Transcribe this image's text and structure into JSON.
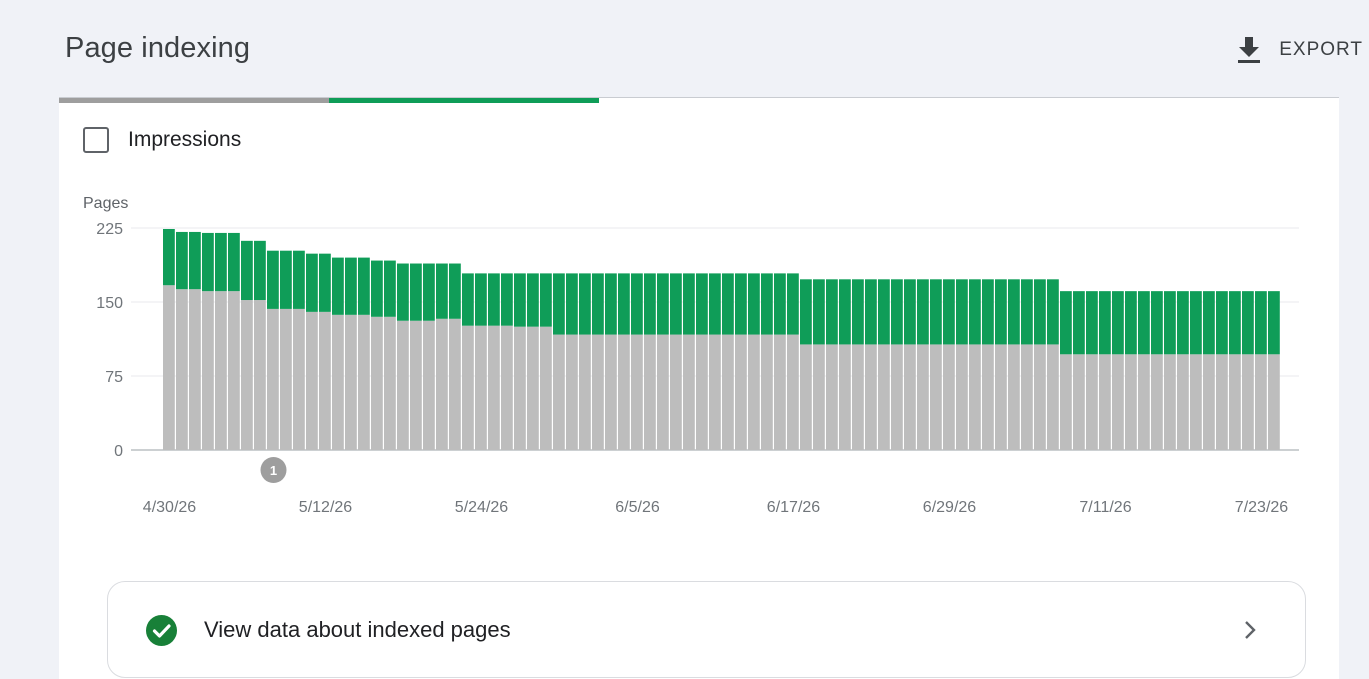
{
  "header": {
    "title": "Page indexing",
    "export_label": "EXPORT",
    "export_icon": "download-icon"
  },
  "tabs": [
    {
      "state": "inactive",
      "color": "#9e9e9e"
    },
    {
      "state": "active",
      "color": "#0f9d58"
    }
  ],
  "toggle": {
    "label": "Impressions",
    "checked": false
  },
  "chart_data": {
    "type": "bar",
    "stacked": true,
    "ylabel": "Pages",
    "ylim": [
      0,
      225
    ],
    "yticks": [
      0,
      75,
      150,
      225
    ],
    "grid": true,
    "xtick_labels": [
      "4/30/26",
      "5/12/26",
      "5/24/26",
      "6/5/26",
      "6/17/26",
      "6/29/26",
      "7/11/26",
      "7/23/26"
    ],
    "xtick_indices": [
      0,
      12,
      24,
      36,
      48,
      60,
      72,
      84
    ],
    "series": [
      {
        "color": "#bdbdbd",
        "values": [
          167,
          163,
          163,
          161,
          161,
          161,
          152,
          152,
          143,
          143,
          143,
          140,
          140,
          137,
          137,
          137,
          135,
          135,
          131,
          131,
          131,
          133,
          133,
          126,
          126,
          126,
          126,
          125,
          125,
          125,
          117,
          117,
          117,
          117,
          117,
          117,
          117,
          117,
          117,
          117,
          117,
          117,
          117,
          117,
          117,
          117,
          117,
          117,
          117,
          107,
          107,
          107,
          107,
          107,
          107,
          107,
          107,
          107,
          107,
          107,
          107,
          107,
          107,
          107,
          107,
          107,
          107,
          107,
          107,
          97,
          97,
          97,
          97,
          97,
          97,
          97,
          97,
          97,
          97,
          97,
          97,
          97,
          97,
          97,
          97,
          97
        ]
      },
      {
        "color": "#0f9d58",
        "values": [
          57,
          58,
          58,
          59,
          59,
          59,
          60,
          60,
          59,
          59,
          59,
          59,
          59,
          58,
          58,
          58,
          57,
          57,
          58,
          58,
          58,
          56,
          56,
          53,
          53,
          53,
          53,
          54,
          54,
          54,
          62,
          62,
          62,
          62,
          62,
          62,
          62,
          62,
          62,
          62,
          62,
          62,
          62,
          62,
          62,
          62,
          62,
          62,
          62,
          66,
          66,
          66,
          66,
          66,
          66,
          66,
          66,
          66,
          66,
          66,
          66,
          66,
          66,
          66,
          66,
          66,
          66,
          66,
          66,
          64,
          64,
          64,
          64,
          64,
          64,
          64,
          64,
          64,
          64,
          64,
          64,
          64,
          64,
          64,
          64,
          64
        ]
      }
    ],
    "annotations": [
      {
        "label": "1",
        "index": 8
      }
    ]
  },
  "card": {
    "label": "View data about indexed pages",
    "status_icon": "check-circle-icon",
    "status_color": "#188038",
    "chevron_icon": "chevron-right-icon"
  }
}
